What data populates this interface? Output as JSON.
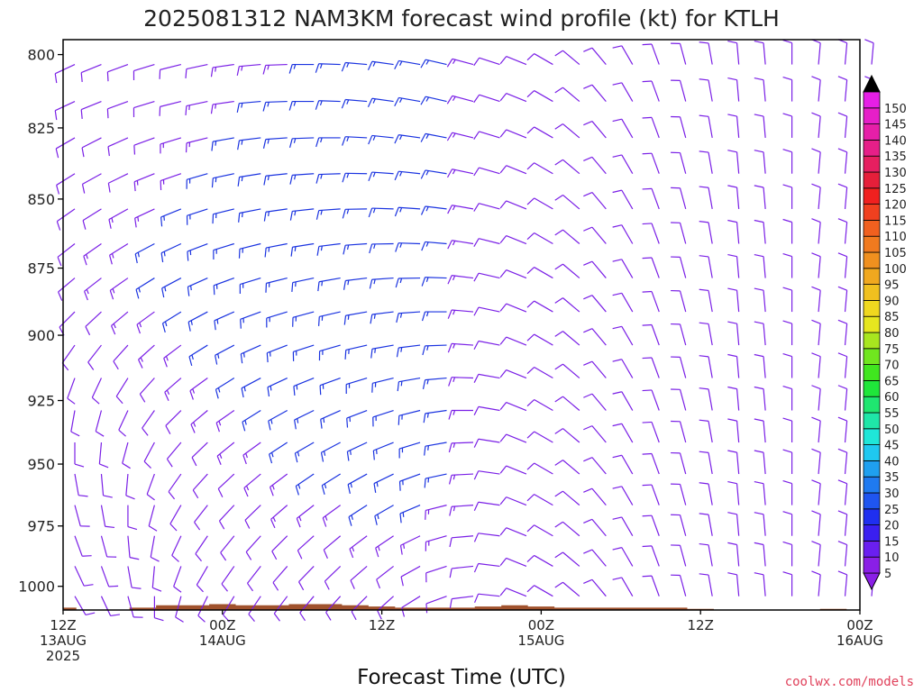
{
  "title": "2025081312 NAM3KM forecast wind profile (kt) for KTLH",
  "credit": "coolwx.com/models",
  "colors": {
    "barb": "#7a1fe6",
    "barb_strong": "#1a33e0",
    "ground": "#a0522d",
    "credit": "#e0405a",
    "frame": "#000000"
  },
  "colorbar": {
    "levels": [
      "5",
      "10",
      "15",
      "20",
      "25",
      "30",
      "35",
      "40",
      "45",
      "50",
      "55",
      "60",
      "65",
      "70",
      "75",
      "80",
      "85",
      "90",
      "95",
      "100",
      "105",
      "110",
      "115",
      "120",
      "125",
      "130",
      "135",
      "140",
      "145",
      "150"
    ],
    "colors": [
      "#8a1fe6",
      "#6a1ff0",
      "#3a1ff0",
      "#1f2ff0",
      "#1f55f0",
      "#1f7af0",
      "#1fa0f0",
      "#1fc8f0",
      "#1fe6d8",
      "#1fe6a8",
      "#1fe670",
      "#1fe63a",
      "#40e61f",
      "#70e61f",
      "#a8e61f",
      "#e6e61f",
      "#f0d81f",
      "#f0c01f",
      "#f0a81f",
      "#f0901f",
      "#f07a1f",
      "#f0601f",
      "#f0401f",
      "#f0201f",
      "#e61f3a",
      "#e61f60",
      "#e61f88",
      "#e61fa8",
      "#e61fc8",
      "#e61fe6"
    ]
  },
  "chart_data": {
    "type": "wind barb time-height section",
    "title": "2025081312 NAM3KM forecast wind profile (kt) for KTLH",
    "xlabel": "Forecast Time (UTC)",
    "ylabel": "",
    "x_range_hours": [
      0,
      60
    ],
    "ylim": [
      1010,
      795
    ],
    "y_scale": "log pressure",
    "y_ticks": [
      "800",
      "825",
      "850",
      "875",
      "900",
      "925",
      "950",
      "975",
      "1000"
    ],
    "x_ticks": [
      {
        "hour": 0,
        "label": "12Z",
        "sub": [
          "13AUG",
          "2025"
        ]
      },
      {
        "hour": 12,
        "label": "00Z",
        "sub": [
          "14AUG"
        ]
      },
      {
        "hour": 24,
        "label": "12Z",
        "sub": []
      },
      {
        "hour": 36,
        "label": "00Z",
        "sub": [
          "15AUG"
        ]
      },
      {
        "hour": 48,
        "label": "12Z",
        "sub": []
      },
      {
        "hour": 60,
        "label": "00Z",
        "sub": [
          "16AUG"
        ]
      }
    ],
    "units": "kt",
    "forecast_hours": [
      0,
      2,
      4,
      6,
      8,
      10,
      12,
      14,
      16,
      18,
      20,
      22,
      24,
      26,
      28,
      30,
      32,
      34,
      36,
      38,
      40,
      42,
      44,
      46,
      48,
      50,
      52,
      54,
      56,
      58,
      60
    ],
    "pressure_levels": [
      800,
      812.5,
      825,
      837.5,
      850,
      862.5,
      875,
      887.5,
      900,
      912.5,
      925,
      937.5,
      950,
      962.5,
      975,
      987.5,
      1000
    ],
    "wind_dir_deg": [
      [
        245,
        248,
        250,
        253,
        256,
        258,
        262,
        265,
        268,
        270,
        272,
        275,
        278,
        280,
        283,
        285,
        288,
        292,
        300,
        310,
        320,
        330,
        340,
        345,
        350,
        355,
        355,
        0,
        5,
        5,
        5
      ],
      [
        245,
        248,
        250,
        253,
        256,
        258,
        262,
        265,
        268,
        270,
        272,
        275,
        278,
        280,
        283,
        285,
        288,
        292,
        300,
        310,
        320,
        330,
        340,
        345,
        350,
        355,
        355,
        0,
        5,
        5,
        5
      ],
      [
        240,
        243,
        246,
        250,
        253,
        256,
        260,
        263,
        266,
        268,
        270,
        273,
        276,
        278,
        281,
        284,
        287,
        292,
        300,
        310,
        320,
        330,
        340,
        345,
        350,
        355,
        355,
        0,
        5,
        5,
        5
      ],
      [
        238,
        241,
        244,
        248,
        251,
        254,
        258,
        261,
        264,
        266,
        268,
        271,
        274,
        276,
        279,
        282,
        286,
        292,
        300,
        310,
        320,
        330,
        340,
        345,
        350,
        355,
        355,
        0,
        5,
        5,
        5
      ],
      [
        235,
        238,
        241,
        245,
        248,
        252,
        256,
        259,
        262,
        264,
        266,
        269,
        272,
        274,
        277,
        280,
        285,
        292,
        300,
        310,
        320,
        330,
        340,
        345,
        350,
        355,
        355,
        0,
        5,
        5,
        5
      ],
      [
        232,
        235,
        238,
        242,
        245,
        249,
        253,
        256,
        259,
        261,
        263,
        266,
        269,
        272,
        275,
        279,
        284,
        292,
        300,
        310,
        320,
        330,
        340,
        345,
        350,
        355,
        355,
        0,
        5,
        5,
        5
      ],
      [
        230,
        232,
        235,
        238,
        242,
        246,
        250,
        253,
        256,
        258,
        260,
        263,
        266,
        269,
        272,
        277,
        283,
        292,
        300,
        310,
        320,
        330,
        340,
        345,
        350,
        355,
        355,
        0,
        5,
        5,
        5
      ],
      [
        225,
        227,
        230,
        234,
        238,
        242,
        246,
        250,
        253,
        255,
        257,
        260,
        263,
        266,
        270,
        275,
        282,
        292,
        300,
        310,
        320,
        330,
        340,
        345,
        350,
        355,
        355,
        0,
        5,
        5,
        5
      ],
      [
        215,
        218,
        222,
        228,
        233,
        238,
        242,
        246,
        249,
        252,
        254,
        257,
        260,
        263,
        268,
        274,
        281,
        292,
        300,
        310,
        320,
        330,
        340,
        345,
        350,
        355,
        355,
        0,
        5,
        5,
        5
      ],
      [
        200,
        205,
        212,
        222,
        229,
        234,
        238,
        242,
        245,
        248,
        250,
        253,
        256,
        260,
        265,
        272,
        280,
        292,
        300,
        310,
        320,
        330,
        340,
        345,
        350,
        355,
        355,
        0,
        5,
        5,
        5
      ],
      [
        190,
        195,
        205,
        215,
        225,
        230,
        235,
        238,
        241,
        244,
        246,
        249,
        252,
        256,
        262,
        270,
        280,
        292,
        300,
        310,
        320,
        330,
        340,
        345,
        350,
        355,
        355,
        0,
        5,
        5,
        5
      ],
      [
        180,
        185,
        195,
        208,
        220,
        226,
        231,
        234,
        237,
        240,
        242,
        245,
        248,
        253,
        260,
        268,
        279,
        292,
        300,
        310,
        320,
        330,
        340,
        345,
        350,
        355,
        355,
        0,
        5,
        5,
        5
      ],
      [
        170,
        175,
        185,
        200,
        215,
        222,
        227,
        230,
        233,
        236,
        238,
        241,
        244,
        250,
        258,
        267,
        278,
        292,
        300,
        310,
        320,
        330,
        340,
        345,
        350,
        355,
        355,
        0,
        5,
        5,
        5
      ],
      [
        165,
        170,
        180,
        195,
        210,
        218,
        223,
        226,
        229,
        232,
        234,
        237,
        240,
        247,
        256,
        266,
        278,
        292,
        300,
        310,
        320,
        330,
        340,
        345,
        350,
        355,
        355,
        0,
        5,
        5,
        5
      ],
      [
        160,
        165,
        175,
        190,
        205,
        214,
        219,
        222,
        225,
        228,
        230,
        233,
        236,
        244,
        254,
        265,
        277,
        292,
        300,
        310,
        320,
        330,
        340,
        345,
        350,
        355,
        355,
        0,
        5,
        5,
        5
      ],
      [
        155,
        160,
        170,
        185,
        200,
        210,
        215,
        218,
        221,
        224,
        226,
        229,
        232,
        241,
        252,
        264,
        277,
        292,
        300,
        310,
        320,
        330,
        340,
        345,
        350,
        355,
        355,
        0,
        5,
        5,
        5
      ],
      [
        150,
        155,
        165,
        180,
        195,
        206,
        211,
        214,
        217,
        220,
        222,
        225,
        228,
        238,
        250,
        263,
        276,
        292,
        300,
        310,
        320,
        330,
        340,
        345,
        350,
        355,
        355,
        0,
        5,
        5,
        5
      ]
    ],
    "wind_speed_kt": [
      [
        10,
        10,
        10,
        12,
        12,
        12,
        14,
        14,
        14,
        15,
        15,
        15,
        15,
        15,
        15,
        14,
        12,
        12,
        12,
        10,
        10,
        10,
        10,
        10,
        10,
        10,
        10,
        10,
        10,
        10,
        10
      ],
      [
        10,
        10,
        12,
        12,
        12,
        14,
        14,
        15,
        15,
        15,
        15,
        15,
        15,
        15,
        15,
        14,
        12,
        12,
        12,
        10,
        10,
        10,
        10,
        10,
        10,
        10,
        10,
        10,
        10,
        10,
        10
      ],
      [
        10,
        12,
        12,
        12,
        14,
        14,
        15,
        15,
        15,
        15,
        15,
        15,
        15,
        15,
        15,
        14,
        12,
        12,
        12,
        10,
        10,
        10,
        10,
        10,
        10,
        10,
        10,
        10,
        10,
        10,
        10
      ],
      [
        12,
        12,
        12,
        14,
        14,
        15,
        15,
        15,
        15,
        15,
        15,
        15,
        15,
        15,
        15,
        14,
        12,
        12,
        12,
        10,
        10,
        10,
        10,
        10,
        10,
        10,
        10,
        10,
        10,
        10,
        10
      ],
      [
        12,
        12,
        14,
        14,
        15,
        15,
        15,
        15,
        15,
        15,
        15,
        15,
        15,
        15,
        15,
        14,
        12,
        12,
        12,
        10,
        10,
        10,
        10,
        10,
        10,
        10,
        10,
        10,
        10,
        10,
        10
      ],
      [
        12,
        14,
        14,
        15,
        15,
        15,
        15,
        15,
        15,
        15,
        15,
        15,
        15,
        15,
        15,
        14,
        12,
        12,
        12,
        10,
        10,
        10,
        10,
        10,
        10,
        10,
        10,
        10,
        10,
        10,
        10
      ],
      [
        12,
        14,
        14,
        15,
        15,
        15,
        15,
        15,
        15,
        15,
        15,
        15,
        15,
        15,
        15,
        14,
        12,
        12,
        12,
        10,
        10,
        10,
        10,
        10,
        10,
        10,
        10,
        10,
        10,
        10,
        10
      ],
      [
        12,
        12,
        14,
        14,
        15,
        15,
        15,
        15,
        15,
        15,
        15,
        15,
        15,
        15,
        15,
        14,
        12,
        12,
        12,
        10,
        10,
        10,
        10,
        10,
        10,
        10,
        10,
        10,
        10,
        10,
        10
      ],
      [
        10,
        12,
        12,
        14,
        14,
        15,
        15,
        15,
        15,
        15,
        15,
        15,
        15,
        15,
        15,
        14,
        12,
        12,
        12,
        10,
        10,
        10,
        10,
        10,
        10,
        10,
        10,
        10,
        10,
        10,
        10
      ],
      [
        10,
        10,
        12,
        12,
        14,
        14,
        15,
        15,
        15,
        15,
        15,
        15,
        15,
        15,
        15,
        14,
        12,
        12,
        12,
        10,
        10,
        10,
        10,
        10,
        10,
        10,
        10,
        10,
        10,
        10,
        10
      ],
      [
        10,
        10,
        10,
        12,
        12,
        14,
        14,
        15,
        15,
        15,
        15,
        15,
        15,
        15,
        15,
        14,
        12,
        12,
        12,
        10,
        10,
        10,
        10,
        10,
        10,
        10,
        10,
        10,
        10,
        10,
        10
      ],
      [
        10,
        10,
        10,
        10,
        12,
        12,
        14,
        14,
        15,
        15,
        15,
        15,
        15,
        15,
        15,
        14,
        12,
        12,
        12,
        10,
        10,
        10,
        10,
        10,
        10,
        10,
        10,
        10,
        10,
        10,
        10
      ],
      [
        8,
        8,
        10,
        10,
        10,
        12,
        12,
        14,
        14,
        15,
        15,
        15,
        15,
        15,
        15,
        14,
        12,
        12,
        12,
        10,
        10,
        10,
        10,
        10,
        10,
        10,
        10,
        10,
        10,
        10,
        10
      ],
      [
        8,
        8,
        8,
        10,
        10,
        10,
        12,
        12,
        14,
        14,
        14,
        15,
        15,
        15,
        14,
        14,
        12,
        12,
        12,
        10,
        10,
        10,
        10,
        10,
        10,
        10,
        10,
        10,
        10,
        10,
        10
      ],
      [
        8,
        8,
        8,
        8,
        10,
        10,
        10,
        12,
        12,
        12,
        12,
        14,
        14,
        14,
        14,
        12,
        12,
        12,
        12,
        10,
        10,
        10,
        10,
        10,
        10,
        10,
        10,
        10,
        10,
        10,
        10
      ],
      [
        8,
        8,
        8,
        8,
        8,
        10,
        10,
        10,
        10,
        12,
        12,
        12,
        12,
        12,
        12,
        12,
        12,
        12,
        12,
        10,
        10,
        10,
        10,
        10,
        10,
        10,
        10,
        10,
        10,
        10,
        10
      ],
      [
        8,
        8,
        8,
        8,
        8,
        8,
        10,
        10,
        10,
        10,
        10,
        10,
        10,
        10,
        10,
        10,
        10,
        10,
        10,
        10,
        10,
        10,
        10,
        10,
        10,
        10,
        10,
        10,
        10,
        10,
        10
      ]
    ],
    "surface_pressure_mb": [
      1009,
      1010,
      1010,
      1009,
      1008,
      1008,
      1007.5,
      1008,
      1008,
      1007.5,
      1007.5,
      1008,
      1008.5,
      1009,
      1009,
      1009,
      1008.5,
      1008,
      1008.5,
      1009,
      1009,
      1009,
      1009,
      1009,
      1009.5,
      1010,
      1010,
      1010,
      1010,
      1009.5,
      1010
    ]
  }
}
